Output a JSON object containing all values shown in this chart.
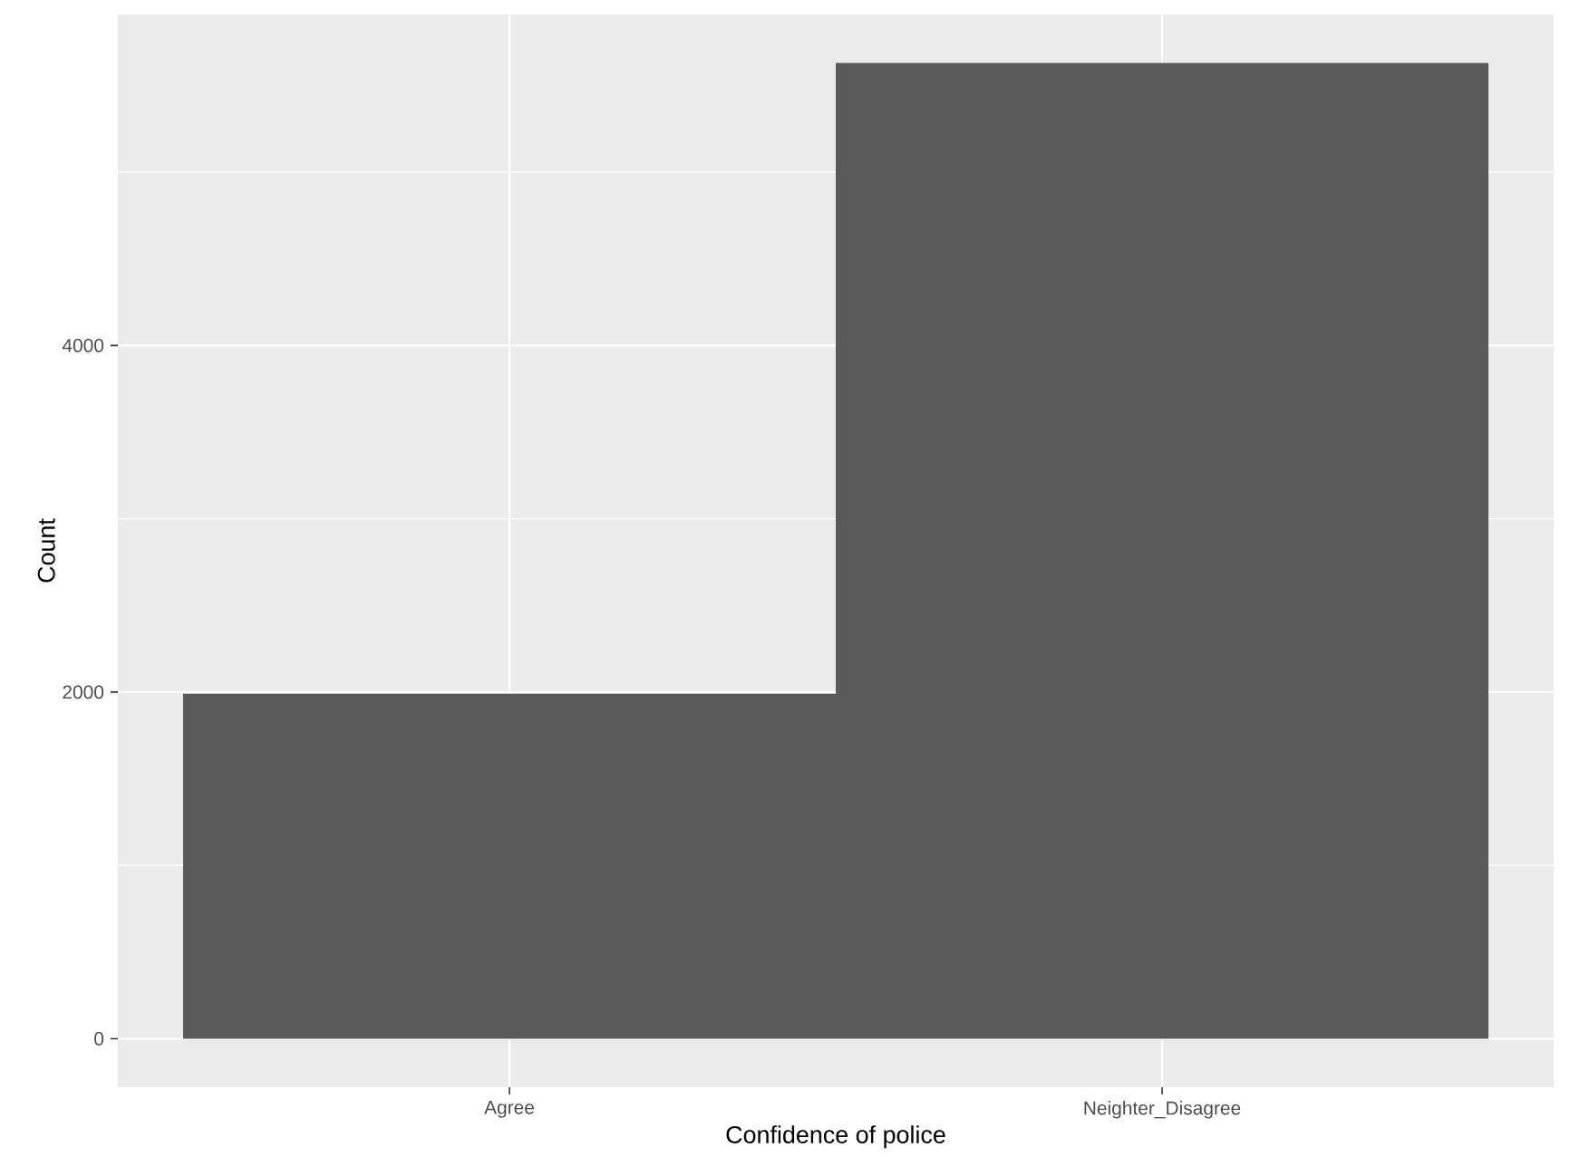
{
  "chart_data": {
    "type": "bar",
    "categories": [
      "Agree",
      "Neighter_Disagree"
    ],
    "values": [
      1990,
      5630
    ],
    "color": "#595959",
    "xlabel": "Confidence of police",
    "ylabel": "Count",
    "ylim": [
      -280,
      5910
    ],
    "yticks": [
      0,
      {
        "value": 1000,
        "label": null
      },
      2000,
      {
        "value": 3000,
        "label": null
      },
      4000,
      {
        "value": 5000,
        "label": null
      }
    ],
    "grid": true
  }
}
